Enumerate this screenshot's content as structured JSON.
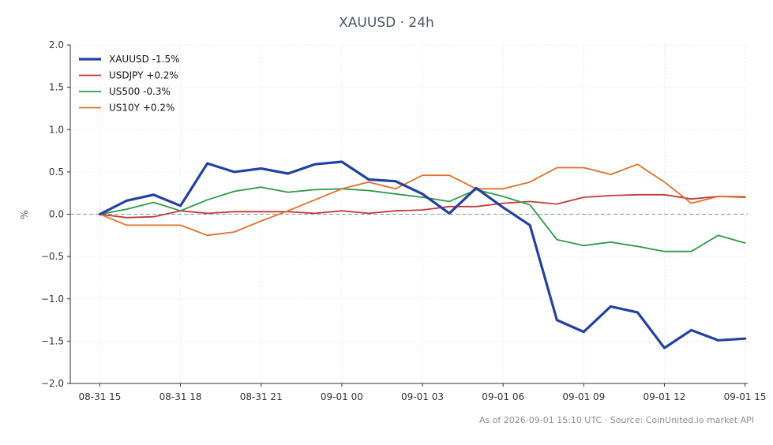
{
  "chart_data": {
    "type": "line",
    "title": "XAUUSD · 24h",
    "ylabel": "%",
    "xlabel": "",
    "ylim": [
      -2.0,
      2.0
    ],
    "yticks": [
      2.0,
      1.5,
      1.0,
      0.5,
      0.0,
      -0.5,
      -1.0,
      -1.5,
      -2.0
    ],
    "ytick_labels": [
      "2.0",
      "1.5",
      "1.0",
      "0.5",
      "0.0",
      "−0.5",
      "−1.0",
      "−1.5",
      "−2.0"
    ],
    "xlim": [
      -1.1,
      24.1
    ],
    "xticks": [
      0,
      3,
      6,
      9,
      12,
      15,
      18,
      21,
      24
    ],
    "xtick_labels": [
      "08-31 15",
      "08-31 18",
      "08-31 21",
      "09-01 00",
      "09-01 03",
      "09-01 06",
      "09-01 09",
      "09-01 12",
      "09-01 15"
    ],
    "x": [
      0,
      1,
      2,
      3,
      4,
      5,
      6,
      7,
      8,
      9,
      10,
      11,
      12,
      13,
      14,
      15,
      16,
      17,
      18,
      19,
      20,
      21,
      22,
      23,
      24
    ],
    "grid": true,
    "zero_line": true,
    "legend_position": "top-left",
    "series": [
      {
        "name": "XAUUSD -1.5%",
        "color": "#2541a0",
        "values": [
          0.0,
          0.16,
          0.23,
          0.1,
          0.6,
          0.5,
          0.54,
          0.48,
          0.59,
          0.62,
          0.41,
          0.39,
          0.24,
          0.01,
          0.31,
          0.08,
          -0.13,
          -1.25,
          -1.39,
          -1.09,
          -1.16,
          -1.58,
          -1.37,
          -1.49,
          -1.47
        ]
      },
      {
        "name": "USDJPY +0.2%",
        "color": "#c23b3b",
        "values": [
          0.0,
          -0.04,
          -0.03,
          0.04,
          0.01,
          0.03,
          0.03,
          0.03,
          0.01,
          0.04,
          0.01,
          0.04,
          0.05,
          0.09,
          0.09,
          0.13,
          0.15,
          0.12,
          0.2,
          0.22,
          0.23,
          0.23,
          0.18,
          0.21,
          0.2
        ]
      },
      {
        "name": "US500 -0.3%",
        "color": "#2f9a48",
        "values": [
          0.0,
          0.06,
          0.14,
          0.04,
          0.17,
          0.27,
          0.32,
          0.26,
          0.29,
          0.3,
          0.28,
          0.24,
          0.2,
          0.15,
          0.29,
          0.21,
          0.11,
          -0.3,
          -0.37,
          -0.33,
          -0.38,
          -0.44,
          -0.44,
          -0.25,
          -0.34
        ]
      },
      {
        "name": "US10Y +0.2%",
        "color": "#e0702b",
        "values": [
          0.0,
          -0.13,
          -0.13,
          -0.13,
          -0.25,
          -0.21,
          -0.08,
          0.04,
          0.17,
          0.3,
          0.38,
          0.3,
          0.46,
          0.46,
          0.3,
          0.3,
          0.38,
          0.55,
          0.55,
          0.47,
          0.59,
          0.38,
          0.13,
          0.21,
          0.21
        ]
      }
    ]
  },
  "footer": "As of 2026-09-01 15:10 UTC · Source: CoinUnited.io market API"
}
